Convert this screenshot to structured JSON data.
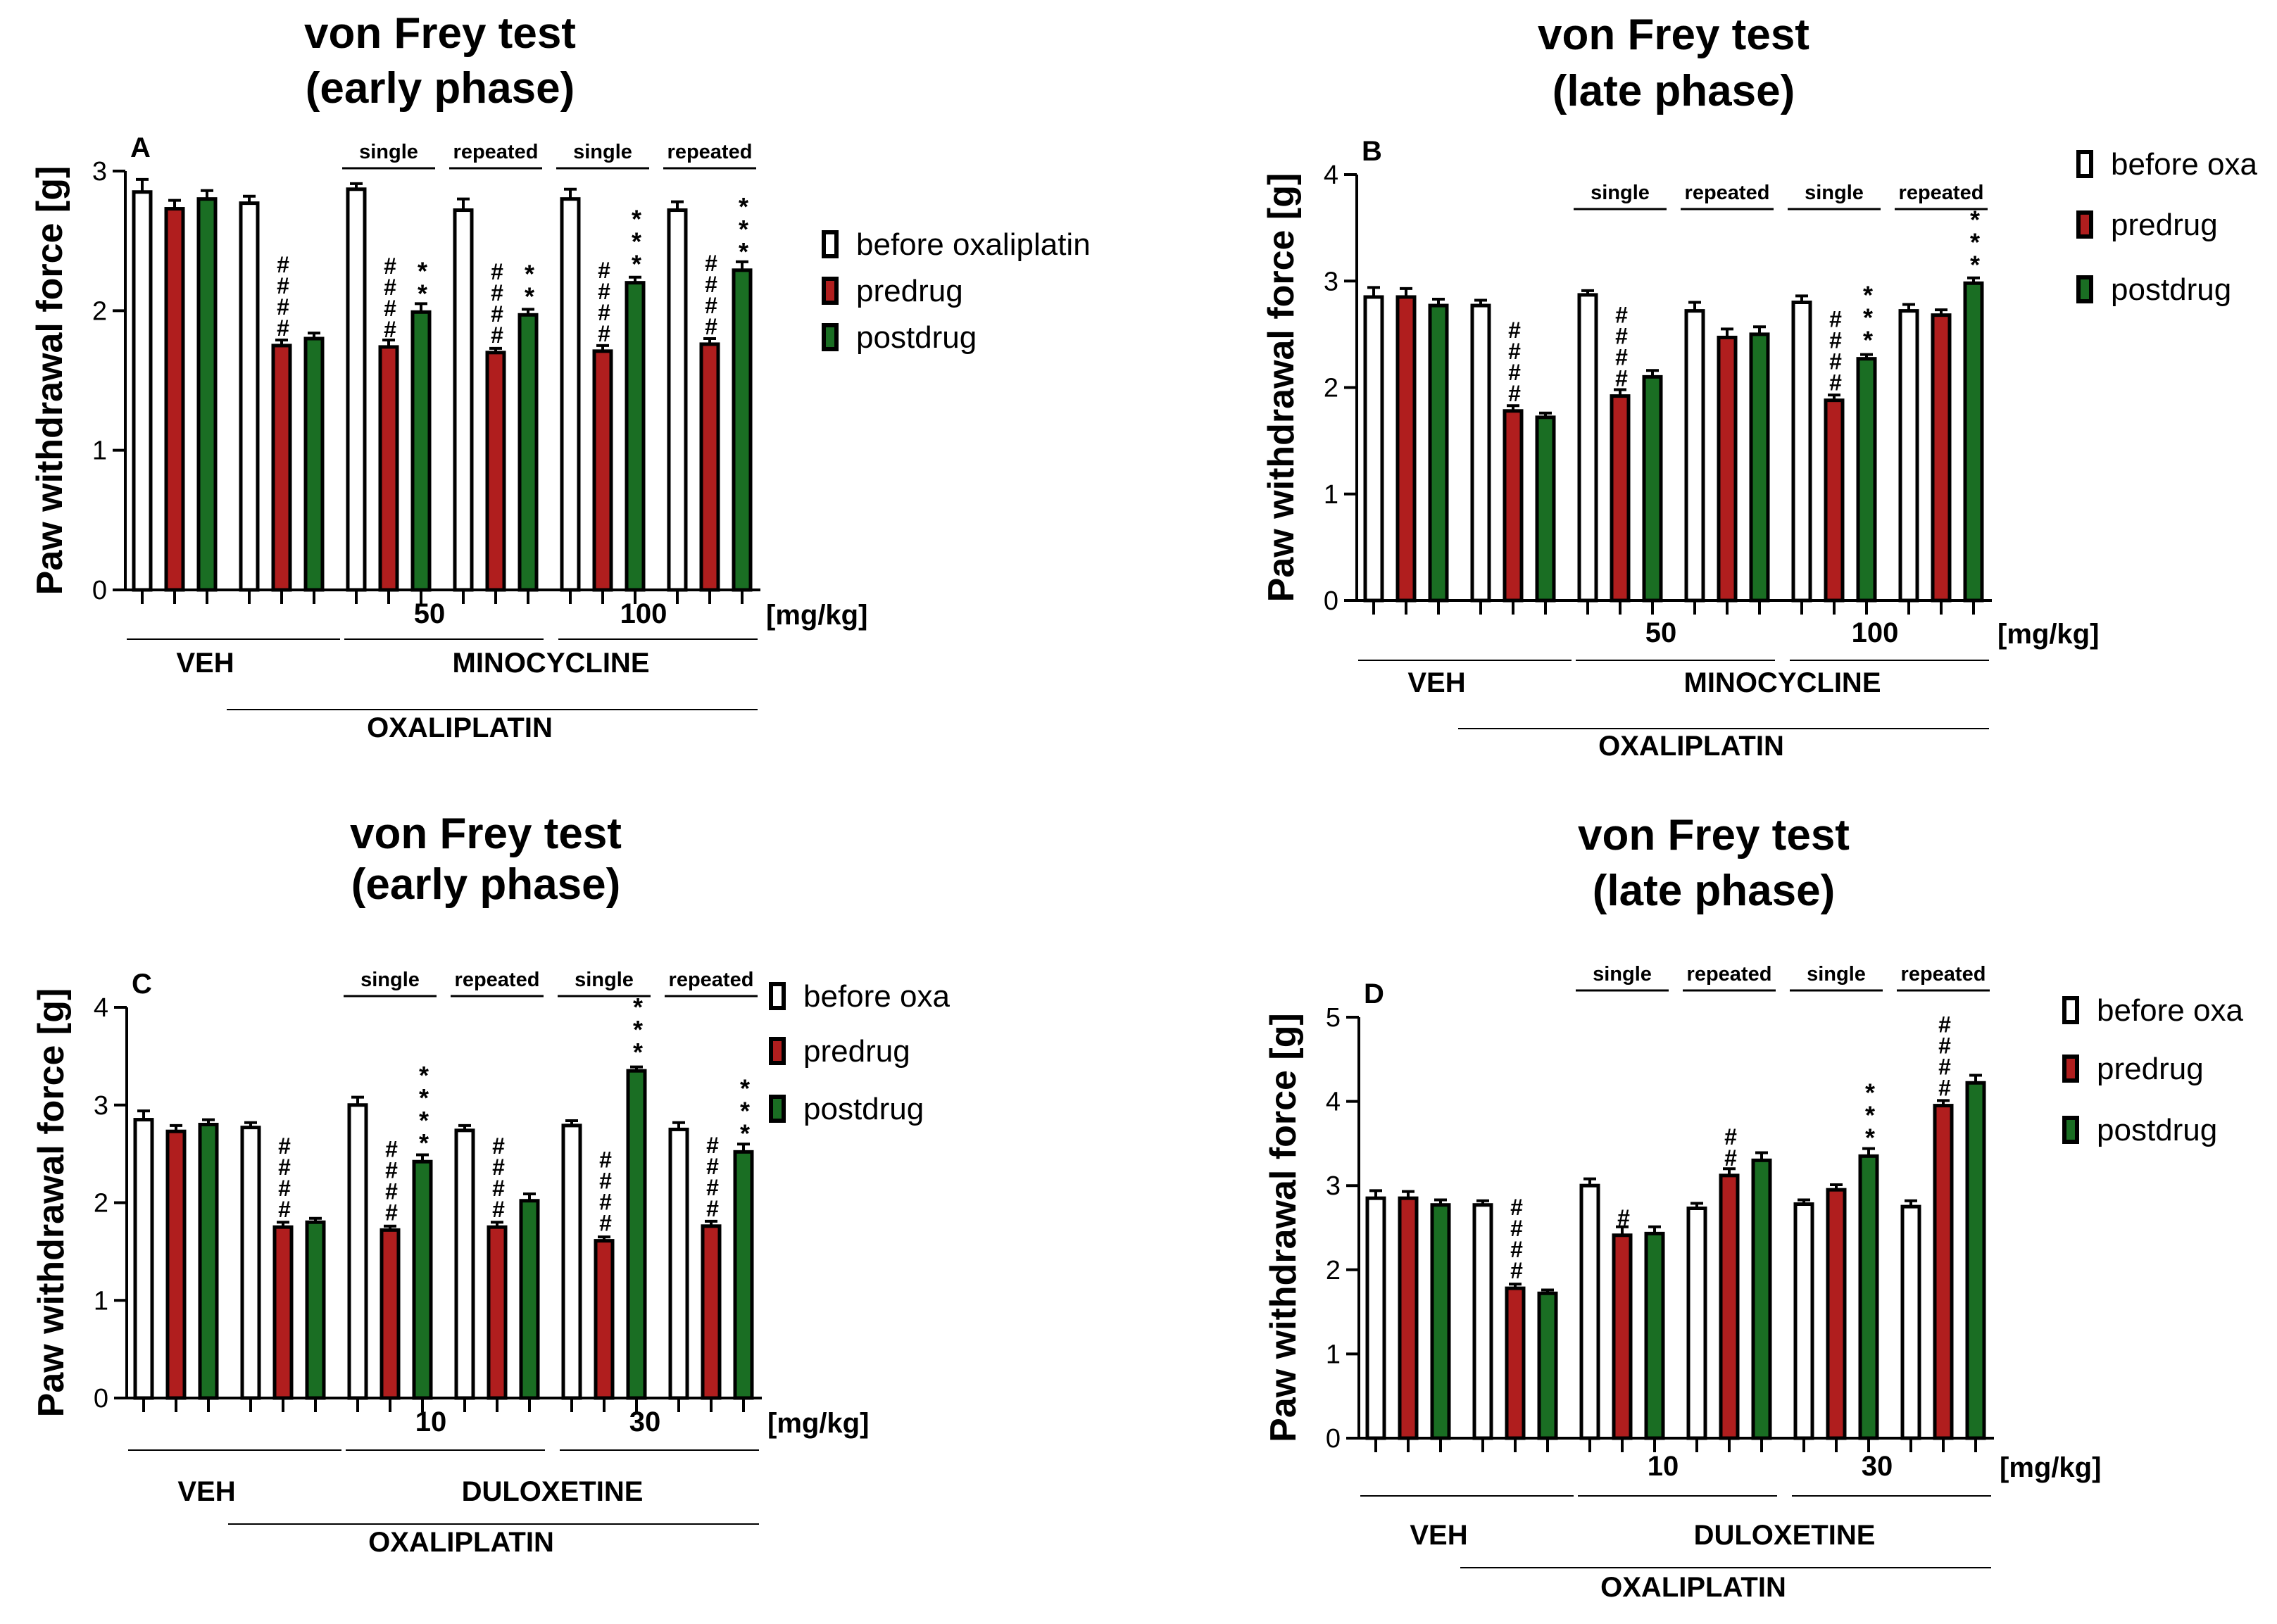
{
  "colors": {
    "before": "#ffffff",
    "predrug": "#b01e1e",
    "postdrug": "#1a6e23",
    "stroke": "#000000"
  },
  "chart_data": [
    {
      "type": "bar",
      "panel_label": "A",
      "title": [
        "von Frey test",
        "(early phase)"
      ],
      "ylabel": "Paw withdrawal force [g]",
      "ylim": [
        0,
        3
      ],
      "yticks": [
        "0",
        "1",
        "2",
        "3"
      ],
      "legend": [
        "before oxaliplatin",
        "predrug",
        "postdrug"
      ],
      "groups": [
        {
          "values": [
            2.85,
            2.73,
            2.8
          ],
          "errors": [
            0.09,
            0.06,
            0.06
          ],
          "sig": [
            "",
            "",
            ""
          ]
        },
        {
          "values": [
            2.77,
            1.75,
            1.8
          ],
          "errors": [
            0.05,
            0.04,
            0.04
          ],
          "sig": [
            "",
            "####",
            ""
          ]
        },
        {
          "values": [
            2.87,
            1.74,
            1.99
          ],
          "errors": [
            0.04,
            0.05,
            0.06
          ],
          "sig": [
            "",
            "####",
            "**"
          ]
        },
        {
          "values": [
            2.72,
            1.7,
            1.97
          ],
          "errors": [
            0.08,
            0.03,
            0.04
          ],
          "sig": [
            "",
            "####",
            "**"
          ]
        },
        {
          "values": [
            2.8,
            1.71,
            2.2
          ],
          "errors": [
            0.07,
            0.04,
            0.04
          ],
          "sig": [
            "",
            "####",
            "***"
          ]
        },
        {
          "values": [
            2.72,
            1.76,
            2.29
          ],
          "errors": [
            0.06,
            0.04,
            0.06
          ],
          "sig": [
            "",
            "####",
            "***"
          ]
        }
      ],
      "regimen": [
        "",
        "",
        "single",
        "repeated",
        "single",
        "repeated"
      ],
      "dose_unit": "[mg/kg]",
      "doses": [
        "50",
        "100"
      ],
      "veh_label": "VEH",
      "drug_label": "MINOCYCLINE",
      "oxa_label": "OXALIPLATIN"
    },
    {
      "type": "bar",
      "panel_label": "B",
      "title": [
        "von Frey test",
        "(late phase)"
      ],
      "ylabel": "Paw withdrawal force [g]",
      "ylim": [
        0,
        4
      ],
      "yticks": [
        "0",
        "1",
        "2",
        "3",
        "4"
      ],
      "legend": [
        "before oxa",
        "predrug",
        "postdrug"
      ],
      "groups": [
        {
          "values": [
            2.85,
            2.85,
            2.77
          ],
          "errors": [
            0.09,
            0.08,
            0.06
          ],
          "sig": [
            "",
            "",
            ""
          ]
        },
        {
          "values": [
            2.77,
            1.78,
            1.72
          ],
          "errors": [
            0.05,
            0.05,
            0.04
          ],
          "sig": [
            "",
            "####",
            ""
          ]
        },
        {
          "values": [
            2.87,
            1.92,
            2.1
          ],
          "errors": [
            0.04,
            0.06,
            0.06
          ],
          "sig": [
            "",
            "####",
            ""
          ]
        },
        {
          "values": [
            2.72,
            2.47,
            2.5
          ],
          "errors": [
            0.08,
            0.08,
            0.07
          ],
          "sig": [
            "",
            "",
            ""
          ]
        },
        {
          "values": [
            2.8,
            1.88,
            2.27
          ],
          "errors": [
            0.06,
            0.05,
            0.04
          ],
          "sig": [
            "",
            "####",
            "***"
          ]
        },
        {
          "values": [
            2.72,
            2.68,
            2.98
          ],
          "errors": [
            0.06,
            0.05,
            0.05
          ],
          "sig": [
            "",
            "",
            "***"
          ]
        }
      ],
      "regimen": [
        "",
        "",
        "single",
        "repeated",
        "single",
        "repeated"
      ],
      "dose_unit": "[mg/kg]",
      "doses": [
        "50",
        "100"
      ],
      "veh_label": "VEH",
      "drug_label": "MINOCYCLINE",
      "oxa_label": "OXALIPLATIN"
    },
    {
      "type": "bar",
      "panel_label": "C",
      "title": [
        "von Frey test",
        "(early phase)"
      ],
      "ylabel": "Paw withdrawal force [g]",
      "ylim": [
        0,
        4
      ],
      "yticks": [
        "0",
        "1",
        "2",
        "3",
        "4"
      ],
      "legend": [
        "before oxa",
        "predrug",
        "postdrug"
      ],
      "groups": [
        {
          "values": [
            2.85,
            2.73,
            2.8
          ],
          "errors": [
            0.09,
            0.06,
            0.05
          ],
          "sig": [
            "",
            "",
            ""
          ]
        },
        {
          "values": [
            2.77,
            1.75,
            1.8
          ],
          "errors": [
            0.05,
            0.05,
            0.04
          ],
          "sig": [
            "",
            "####",
            ""
          ]
        },
        {
          "values": [
            3.0,
            1.72,
            2.42
          ],
          "errors": [
            0.08,
            0.04,
            0.07
          ],
          "sig": [
            "",
            "####",
            "****"
          ]
        },
        {
          "values": [
            2.74,
            1.75,
            2.02
          ],
          "errors": [
            0.05,
            0.05,
            0.07
          ],
          "sig": [
            "",
            "####",
            ""
          ]
        },
        {
          "values": [
            2.79,
            1.61,
            3.35
          ],
          "errors": [
            0.05,
            0.04,
            0.04
          ],
          "sig": [
            "",
            "####",
            "***"
          ]
        },
        {
          "values": [
            2.75,
            1.76,
            2.52
          ],
          "errors": [
            0.07,
            0.05,
            0.08
          ],
          "sig": [
            "",
            "####",
            "***"
          ]
        }
      ],
      "regimen": [
        "",
        "",
        "single",
        "repeated",
        "single",
        "repeated"
      ],
      "dose_unit": "[mg/kg]",
      "doses": [
        "10",
        "30"
      ],
      "veh_label": "VEH",
      "drug_label": "DULOXETINE",
      "oxa_label": "OXALIPLATIN"
    },
    {
      "type": "bar",
      "panel_label": "D",
      "title": [
        "von Frey test",
        "(late phase)"
      ],
      "ylabel": "Paw withdrawal force [g]",
      "ylim": [
        0,
        5
      ],
      "yticks": [
        "0",
        "1",
        "2",
        "3",
        "4",
        "5"
      ],
      "legend": [
        "before oxa",
        "predrug",
        "postdrug"
      ],
      "groups": [
        {
          "values": [
            2.85,
            2.85,
            2.77
          ],
          "errors": [
            0.09,
            0.08,
            0.06
          ],
          "sig": [
            "",
            "",
            ""
          ]
        },
        {
          "values": [
            2.77,
            1.78,
            1.72
          ],
          "errors": [
            0.05,
            0.05,
            0.04
          ],
          "sig": [
            "",
            "####",
            ""
          ]
        },
        {
          "values": [
            3.0,
            2.41,
            2.43
          ],
          "errors": [
            0.08,
            0.1,
            0.08
          ],
          "sig": [
            "",
            "#",
            ""
          ]
        },
        {
          "values": [
            2.73,
            3.12,
            3.3
          ],
          "errors": [
            0.06,
            0.08,
            0.09
          ],
          "sig": [
            "",
            "##",
            ""
          ]
        },
        {
          "values": [
            2.78,
            2.95,
            3.35
          ],
          "errors": [
            0.05,
            0.06,
            0.09
          ],
          "sig": [
            "",
            "",
            "***"
          ]
        },
        {
          "values": [
            2.75,
            3.95,
            4.22
          ],
          "errors": [
            0.07,
            0.06,
            0.09
          ],
          "sig": [
            "",
            "####",
            ""
          ]
        }
      ],
      "regimen": [
        "",
        "",
        "single",
        "repeated",
        "single",
        "repeated"
      ],
      "dose_unit": "[mg/kg]",
      "doses": [
        "10",
        "30"
      ],
      "veh_label": "VEH",
      "drug_label": "DULOXETINE",
      "oxa_label": "OXALIPLATIN"
    }
  ]
}
